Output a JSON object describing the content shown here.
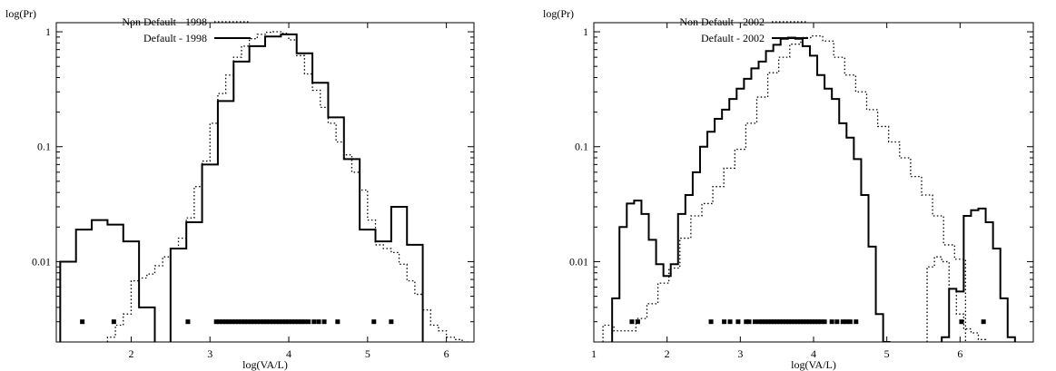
{
  "chart_data": [
    {
      "type": "line",
      "step": true,
      "xlabel": "log(VA/L)",
      "ylabel": "log(Pr)",
      "yscale": "log",
      "xlim": [
        1.05,
        6.35
      ],
      "ylim": [
        0.002,
        1.2
      ],
      "xticks": [
        2,
        3,
        4,
        5,
        6
      ],
      "yticks": [
        0.01,
        0.1,
        1
      ],
      "yticklabels": [
        "0.01",
        "0.1",
        "1"
      ],
      "legend_position": "top-left",
      "series": [
        {
          "name": "Non Default - 1998",
          "style": "dotted",
          "x": [
            1.75,
            1.85,
            1.95,
            2.05,
            2.15,
            2.25,
            2.35,
            2.45,
            2.55,
            2.65,
            2.75,
            2.85,
            2.95,
            3.05,
            3.15,
            3.25,
            3.35,
            3.45,
            3.55,
            3.65,
            3.75,
            3.85,
            3.95,
            4.05,
            4.15,
            4.25,
            4.35,
            4.45,
            4.55,
            4.65,
            4.75,
            4.85,
            4.95,
            5.05,
            5.15,
            5.25,
            5.35,
            5.45,
            5.55,
            5.65,
            5.75,
            5.85,
            5.95,
            6.05,
            6.15,
            6.25
          ],
          "y": [
            0.0022,
            0.0028,
            0.0035,
            0.0068,
            0.0072,
            0.0078,
            0.0092,
            0.011,
            0.013,
            0.016,
            0.024,
            0.045,
            0.075,
            0.16,
            0.29,
            0.42,
            0.6,
            0.75,
            0.87,
            0.95,
            0.99,
            1.0,
            0.97,
            0.85,
            0.62,
            0.43,
            0.31,
            0.22,
            0.16,
            0.11,
            0.085,
            0.06,
            0.042,
            0.023,
            0.014,
            0.013,
            0.012,
            0.0095,
            0.0068,
            0.0052,
            0.0038,
            0.0028,
            0.0025,
            0.0022,
            0.0021,
            0.002
          ]
        },
        {
          "name": "Default - 1998",
          "style": "solid",
          "segments": [
            {
              "x": [
                1.2,
                1.4,
                1.6,
                1.8,
                2.0,
                2.2
              ],
              "y": [
                0.01,
                0.019,
                0.023,
                0.021,
                0.015,
                0.004
              ]
            },
            {
              "x": [
                2.6,
                2.8,
                3.0,
                3.2,
                3.4,
                3.6,
                3.8,
                4.0,
                4.2,
                4.4,
                4.6,
                4.8,
                5.0,
                5.2,
                5.4,
                5.6
              ],
              "y": [
                0.013,
                0.022,
                0.07,
                0.25,
                0.55,
                0.75,
                0.91,
                0.95,
                0.65,
                0.36,
                0.18,
                0.078,
                0.019,
                0.015,
                0.03,
                0.014
              ]
            }
          ]
        },
        {
          "name": "",
          "type": "scatter",
          "y_level": 0.003,
          "x": [
            1.38,
            1.78,
            2.72,
            3.08,
            3.12,
            3.16,
            3.2,
            3.24,
            3.28,
            3.32,
            3.36,
            3.4,
            3.44,
            3.48,
            3.52,
            3.56,
            3.6,
            3.64,
            3.68,
            3.72,
            3.76,
            3.8,
            3.84,
            3.88,
            3.92,
            3.96,
            4.0,
            4.04,
            4.08,
            4.12,
            4.16,
            4.2,
            4.25,
            4.32,
            4.38,
            4.45,
            4.62,
            5.08,
            5.3
          ]
        }
      ]
    },
    {
      "type": "line",
      "step": true,
      "xlabel": "log(VA/L)",
      "ylabel": "log(Pr)",
      "yscale": "log",
      "xlim": [
        1.0,
        7.0
      ],
      "ylim": [
        0.002,
        1.2
      ],
      "xticks": [
        1,
        2,
        3,
        4,
        5,
        6
      ],
      "yticks": [
        0.01,
        0.1,
        1
      ],
      "yticklabels": [
        "0.01",
        "0.1",
        "1"
      ],
      "legend_position": "top-left",
      "series": [
        {
          "name": "Non Default - 2002",
          "style": "dotted",
          "segments": [
            {
              "x": [
                1.2,
                1.35,
                1.5,
                1.65,
                1.8,
                1.95,
                2.1,
                2.25,
                2.4,
                2.55,
                2.7,
                2.85,
                3.0,
                3.15,
                3.3,
                3.45,
                3.6,
                3.75,
                3.9,
                4.05,
                4.2,
                4.35,
                4.5,
                4.65,
                4.8,
                4.95,
                5.1,
                5.25,
                5.4,
                5.55,
                5.7,
                5.85,
                6.0
              ],
              "y": [
                0.0028,
                0.0025,
                0.0025,
                0.0032,
                0.0043,
                0.0065,
                0.0088,
                0.016,
                0.025,
                0.032,
                0.045,
                0.065,
                0.095,
                0.16,
                0.27,
                0.44,
                0.6,
                0.78,
                0.89,
                0.92,
                0.83,
                0.6,
                0.42,
                0.3,
                0.21,
                0.15,
                0.11,
                0.08,
                0.055,
                0.038,
                0.025,
                0.014,
                0.0105
              ]
            },
            {
              "x": [
                5.6,
                5.7,
                5.8,
                5.9,
                6.0,
                6.1,
                6.2,
                6.3
              ],
              "y": [
                0.009,
                0.011,
                0.01,
                0.0058,
                0.0035,
                0.0026,
                0.0024,
                0.0021
              ]
            }
          ]
        },
        {
          "name": "Default - 2002",
          "style": "solid",
          "segments": [
            {
              "x": [
                1.3,
                1.4,
                1.5,
                1.6,
                1.7,
                1.8,
                1.9,
                2.0,
                2.1,
                2.2,
                2.3,
                2.4,
                2.5,
                2.6,
                2.7,
                2.8,
                2.9,
                3.0,
                3.1,
                3.2,
                3.3,
                3.4,
                3.5,
                3.6,
                3.7,
                3.8,
                3.9,
                4.0,
                4.1,
                4.2,
                4.3,
                4.4,
                4.5,
                4.6,
                4.7,
                4.8,
                4.9,
                5.0
              ],
              "y": [
                0.0048,
                0.02,
                0.032,
                0.034,
                0.026,
                0.0155,
                0.0095,
                0.0075,
                0.0095,
                0.026,
                0.038,
                0.06,
                0.1,
                0.135,
                0.175,
                0.21,
                0.26,
                0.32,
                0.39,
                0.48,
                0.55,
                0.68,
                0.77,
                0.87,
                0.89,
                0.87,
                0.75,
                0.62,
                0.42,
                0.32,
                0.26,
                0.16,
                0.12,
                0.078,
                0.038,
                0.0135,
                0.0035,
                0.0018
              ]
            },
            {
              "x": [
                5.8,
                5.9,
                6.0,
                6.1,
                6.2,
                6.3,
                6.4,
                6.5,
                6.6,
                6.7
              ],
              "y": [
                0.0022,
                0.0058,
                0.0055,
                0.025,
                0.028,
                0.029,
                0.022,
                0.013,
                0.0048,
                0.0022
              ]
            }
          ]
        },
        {
          "name": "",
          "type": "scatter",
          "y_level": 0.003,
          "x": [
            1.52,
            1.6,
            2.6,
            2.78,
            2.86,
            2.97,
            3.08,
            3.12,
            3.2,
            3.26,
            3.3,
            3.34,
            3.38,
            3.42,
            3.46,
            3.5,
            3.54,
            3.58,
            3.62,
            3.66,
            3.7,
            3.74,
            3.78,
            3.82,
            3.86,
            3.9,
            3.94,
            3.98,
            4.02,
            4.06,
            4.1,
            4.15,
            4.25,
            4.32,
            4.4,
            4.45,
            4.5,
            4.58,
            6.02,
            6.32
          ]
        }
      ]
    }
  ]
}
